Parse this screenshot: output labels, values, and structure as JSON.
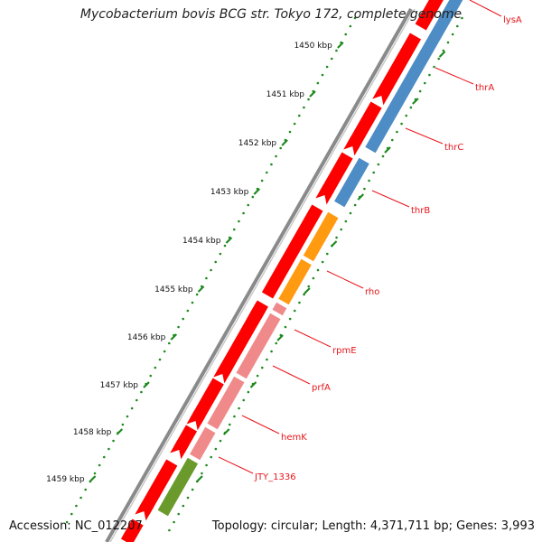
{
  "title": "Mycobacterium bovis BCG str. Tokyo 172, complete genome",
  "footer": {
    "accession": "Accession: NC_012207",
    "summary": "Topology: circular; Length: 4,371,711 bp; Genes: 3,993"
  },
  "scale": {
    "unit": "kbp",
    "ticks": [
      "1450 kbp",
      "1451 kbp",
      "1452 kbp",
      "1453 kbp",
      "1454 kbp",
      "1455 kbp",
      "1456 kbp",
      "1457 kbp",
      "1458 kbp",
      "1459 kbp"
    ]
  },
  "genes": [
    {
      "name": "lysA",
      "color": "#e8151b"
    },
    {
      "name": "thrA",
      "color": "#e8151b"
    },
    {
      "name": "thrC",
      "color": "#e8151b"
    },
    {
      "name": "thrB",
      "color": "#e8151b"
    },
    {
      "name": "rho",
      "color": "#e8151b"
    },
    {
      "name": "rpmE",
      "color": "#e8151b"
    },
    {
      "name": "prfA",
      "color": "#e8151b"
    },
    {
      "name": "hemK",
      "color": "#e8151b"
    },
    {
      "name": "JTY_1336",
      "color": "#e8151b"
    }
  ],
  "colors": {
    "forward_cds": "#ff0000",
    "blue_track": "#4d8cc4",
    "orange_track": "#ff9a11",
    "pink_track": "#f08a8a",
    "olive_track": "#6b9a2c",
    "backbone": "#8a8a8a",
    "tick_marks": "#1f8a1f",
    "label_lines": "#e8151b"
  }
}
